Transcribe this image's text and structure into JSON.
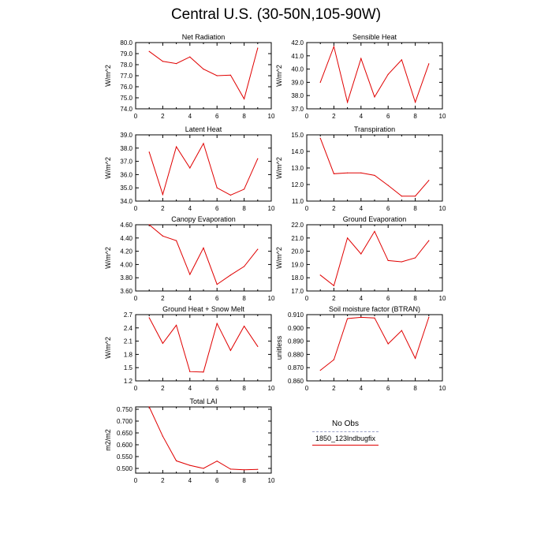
{
  "title": "Central U.S. (30-50N,105-90W)",
  "legend": {
    "obs_label": "No Obs",
    "model_label": "1850_123lndbugfix",
    "obs_color": "#9aa0c8",
    "model_color": "#e00000"
  },
  "chart_data": [
    {
      "type": "line",
      "title": "Net Radiation",
      "ylabel": "W/m^2",
      "x": [
        1,
        2,
        3,
        4,
        5,
        6,
        7,
        8,
        9
      ],
      "values": [
        79.2,
        78.3,
        78.1,
        78.7,
        77.6,
        77.0,
        77.05,
        74.9,
        79.5
      ],
      "xlim": [
        0,
        10
      ],
      "ylim": [
        74.0,
        80.0
      ],
      "xticks": [
        "0",
        "2",
        "4",
        "6",
        "8",
        "10"
      ],
      "yticks": [
        "74.0",
        "75.0",
        "76.0",
        "77.0",
        "78.0",
        "79.0",
        "80.0"
      ],
      "series": [
        {
          "color": "#e00000"
        }
      ]
    },
    {
      "type": "line",
      "title": "Sensible Heat",
      "ylabel": "W/m^2",
      "x": [
        1,
        2,
        3,
        4,
        5,
        6,
        7,
        8,
        9
      ],
      "values": [
        39.0,
        41.7,
        37.5,
        40.8,
        37.9,
        39.6,
        40.7,
        37.5,
        40.4
      ],
      "xlim": [
        0,
        10
      ],
      "ylim": [
        37.0,
        42.0
      ],
      "xticks": [
        "0",
        "2",
        "4",
        "6",
        "8",
        "10"
      ],
      "yticks": [
        "37.0",
        "38.0",
        "39.0",
        "40.0",
        "41.0",
        "42.0"
      ],
      "series": [
        {
          "color": "#e00000"
        }
      ]
    },
    {
      "type": "line",
      "title": "Latent Heat",
      "ylabel": "W/m^2",
      "x": [
        1,
        2,
        3,
        4,
        5,
        6,
        7,
        8,
        9
      ],
      "values": [
        37.7,
        34.5,
        38.1,
        36.5,
        38.35,
        35.0,
        34.45,
        34.9,
        37.2
      ],
      "xlim": [
        0,
        10
      ],
      "ylim": [
        34.0,
        39.0
      ],
      "xticks": [
        "0",
        "2",
        "4",
        "6",
        "8",
        "10"
      ],
      "yticks": [
        "34.0",
        "35.0",
        "36.0",
        "37.0",
        "38.0",
        "39.0"
      ],
      "series": [
        {
          "color": "#e00000"
        }
      ]
    },
    {
      "type": "line",
      "title": "Transpiration",
      "ylabel": "W/m^2",
      "x": [
        1,
        2,
        3,
        4,
        5,
        6,
        7,
        8,
        9
      ],
      "values": [
        14.8,
        12.65,
        12.7,
        12.7,
        12.55,
        11.95,
        11.3,
        11.3,
        12.25
      ],
      "xlim": [
        0,
        10
      ],
      "ylim": [
        11.0,
        15.0
      ],
      "xticks": [
        "0",
        "2",
        "4",
        "6",
        "8",
        "10"
      ],
      "yticks": [
        "11.0",
        "12.0",
        "13.0",
        "14.0",
        "15.0"
      ],
      "series": [
        {
          "color": "#e00000"
        }
      ]
    },
    {
      "type": "line",
      "title": "Canopy Evaporation",
      "ylabel": "W/m^2",
      "x": [
        1,
        2,
        3,
        4,
        5,
        6,
        7,
        8,
        9
      ],
      "values": [
        4.6,
        4.43,
        4.36,
        3.85,
        4.25,
        3.7,
        3.84,
        3.97,
        4.23
      ],
      "xlim": [
        0,
        10
      ],
      "ylim": [
        3.6,
        4.6
      ],
      "xticks": [
        "0",
        "2",
        "4",
        "6",
        "8",
        "10"
      ],
      "yticks": [
        "3.60",
        "3.80",
        "4.00",
        "4.20",
        "4.40",
        "4.60"
      ],
      "series": [
        {
          "color": "#e00000"
        }
      ]
    },
    {
      "type": "line",
      "title": "Ground Evaporation",
      "ylabel": "W/m^2",
      "x": [
        1,
        2,
        3,
        4,
        5,
        6,
        7,
        8,
        9
      ],
      "values": [
        18.2,
        17.4,
        21.0,
        19.8,
        21.5,
        19.3,
        19.2,
        19.5,
        20.8
      ],
      "xlim": [
        0,
        10
      ],
      "ylim": [
        17.0,
        22.0
      ],
      "xticks": [
        "0",
        "2",
        "4",
        "6",
        "8",
        "10"
      ],
      "yticks": [
        "17.0",
        "18.0",
        "19.0",
        "20.0",
        "21.0",
        "22.0"
      ],
      "series": [
        {
          "color": "#e00000"
        }
      ]
    },
    {
      "type": "line",
      "title": "Ground Heat + Snow Melt",
      "ylabel": "W/m^2",
      "x": [
        1,
        2,
        3,
        4,
        5,
        6,
        7,
        8,
        9
      ],
      "values": [
        2.63,
        2.05,
        2.46,
        1.41,
        1.4,
        2.5,
        1.89,
        2.44,
        1.98
      ],
      "xlim": [
        0,
        10
      ],
      "ylim": [
        1.2,
        2.7
      ],
      "xticks": [
        "0",
        "2",
        "4",
        "6",
        "8",
        "10"
      ],
      "yticks": [
        "1.2",
        "1.5",
        "1.8",
        "2.1",
        "2.4",
        "2.7"
      ],
      "series": [
        {
          "color": "#e00000"
        }
      ]
    },
    {
      "type": "line",
      "title": "Soil moisture factor (BTRAN)",
      "ylabel": "unitless",
      "x": [
        1,
        2,
        3,
        4,
        5,
        6,
        7,
        8,
        9
      ],
      "values": [
        0.868,
        0.876,
        0.907,
        0.908,
        0.9075,
        0.888,
        0.898,
        0.877,
        0.908
      ],
      "xlim": [
        0,
        10
      ],
      "ylim": [
        0.86,
        0.91
      ],
      "xticks": [
        "0",
        "2",
        "4",
        "6",
        "8",
        "10"
      ],
      "yticks": [
        "0.860",
        "0.870",
        "0.880",
        "0.890",
        "0.900",
        "0.910"
      ],
      "series": [
        {
          "color": "#e00000"
        }
      ]
    },
    {
      "type": "line",
      "title": "Total LAI",
      "ylabel": "m2/m2",
      "x": [
        1,
        2,
        3,
        4,
        5,
        6,
        7,
        8,
        9
      ],
      "values": [
        0.76,
        0.636,
        0.532,
        0.513,
        0.5,
        0.531,
        0.497,
        0.494,
        0.496
      ],
      "xlim": [
        0,
        10
      ],
      "ylim": [
        0.48,
        0.76
      ],
      "xticks": [
        "0",
        "2",
        "4",
        "6",
        "8",
        "10"
      ],
      "yticks": [
        "0.500",
        "0.550",
        "0.600",
        "0.650",
        "0.700",
        "0.750"
      ],
      "ytick_values": [
        0.5,
        0.55,
        0.6,
        0.65,
        0.7,
        0.75
      ],
      "series": [
        {
          "color": "#e00000"
        }
      ]
    }
  ]
}
